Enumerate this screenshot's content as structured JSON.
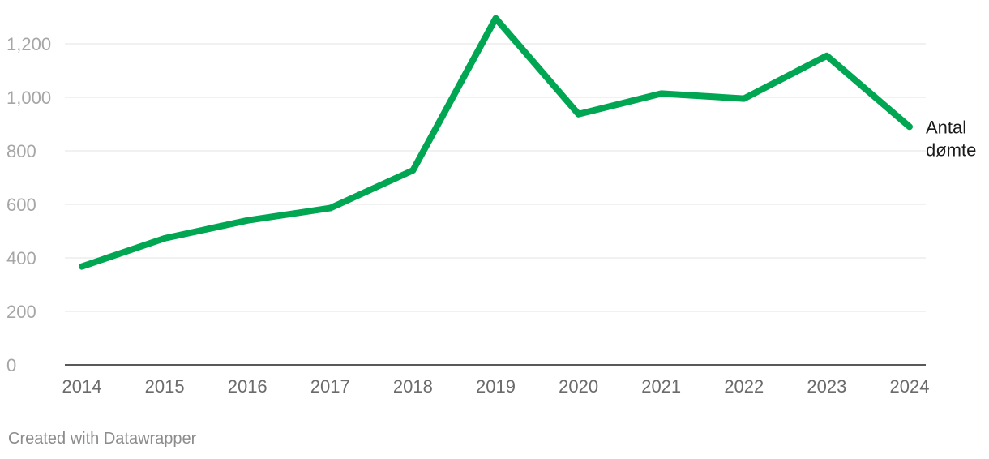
{
  "chart_data": {
    "type": "line",
    "x": [
      "2014",
      "2015",
      "2016",
      "2017",
      "2018",
      "2019",
      "2020",
      "2021",
      "2022",
      "2023",
      "2024"
    ],
    "series": [
      {
        "name": "Antal dømte",
        "values": [
          368,
          473,
          540,
          586,
          727,
          1295,
          937,
          1014,
          995,
          1155,
          890
        ],
        "color": "#00a651"
      }
    ],
    "ylim": [
      0,
      1300
    ],
    "yticks": [
      0,
      200,
      400,
      600,
      800,
      1000,
      1200
    ],
    "ytick_labels": [
      "0",
      "200",
      "400",
      "600",
      "800",
      "1,000",
      "1,200"
    ],
    "series_label_lines": [
      "Antal",
      "dømte"
    ],
    "grid": true,
    "legend": "none"
  },
  "footer": {
    "credit": "Created with Datawrapper"
  }
}
